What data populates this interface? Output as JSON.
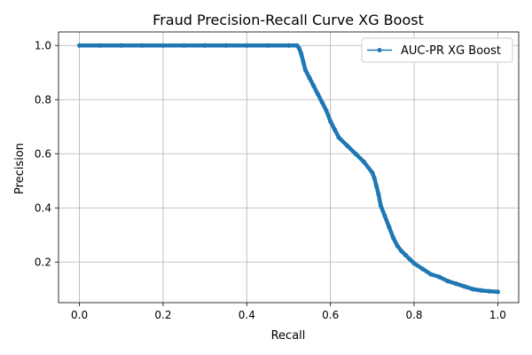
{
  "chart_data": {
    "type": "line",
    "title": "Fraud Precision-Recall Curve XG Boost",
    "xlabel": "Recall",
    "ylabel": "Precision",
    "xlim": [
      -0.05,
      1.05
    ],
    "ylim": [
      0.05,
      1.05
    ],
    "xticks": [
      0.0,
      0.2,
      0.4,
      0.6,
      0.8,
      1.0
    ],
    "yticks": [
      0.2,
      0.4,
      0.6,
      0.8,
      1.0
    ],
    "xtick_labels": [
      "0.0",
      "0.2",
      "0.4",
      "0.6",
      "0.8",
      "1.0"
    ],
    "ytick_labels": [
      "0.2",
      "0.4",
      "0.6",
      "0.8",
      "1.0"
    ],
    "grid": true,
    "legend_position": "top-right",
    "colors": {
      "series": "#1f77b4"
    },
    "series": [
      {
        "name": "AUC-PR XG Boost",
        "marker": "point",
        "x": [
          0.0,
          0.05,
          0.1,
          0.15,
          0.2,
          0.25,
          0.3,
          0.35,
          0.4,
          0.45,
          0.5,
          0.52,
          0.525,
          0.53,
          0.535,
          0.54,
          0.55,
          0.56,
          0.57,
          0.58,
          0.59,
          0.6,
          0.61,
          0.62,
          0.64,
          0.66,
          0.68,
          0.7,
          0.705,
          0.71,
          0.715,
          0.72,
          0.73,
          0.74,
          0.75,
          0.76,
          0.77,
          0.78,
          0.79,
          0.8,
          0.82,
          0.84,
          0.86,
          0.88,
          0.9,
          0.92,
          0.94,
          0.96,
          0.98,
          1.0
        ],
        "y": [
          1.0,
          1.0,
          1.0,
          1.0,
          1.0,
          1.0,
          1.0,
          1.0,
          1.0,
          1.0,
          1.0,
          1.0,
          0.99,
          0.97,
          0.94,
          0.91,
          0.88,
          0.85,
          0.82,
          0.79,
          0.76,
          0.72,
          0.69,
          0.66,
          0.63,
          0.6,
          0.57,
          0.53,
          0.51,
          0.48,
          0.45,
          0.41,
          0.37,
          0.33,
          0.29,
          0.26,
          0.24,
          0.225,
          0.21,
          0.195,
          0.175,
          0.155,
          0.145,
          0.13,
          0.12,
          0.11,
          0.1,
          0.095,
          0.092,
          0.09
        ]
      }
    ]
  }
}
